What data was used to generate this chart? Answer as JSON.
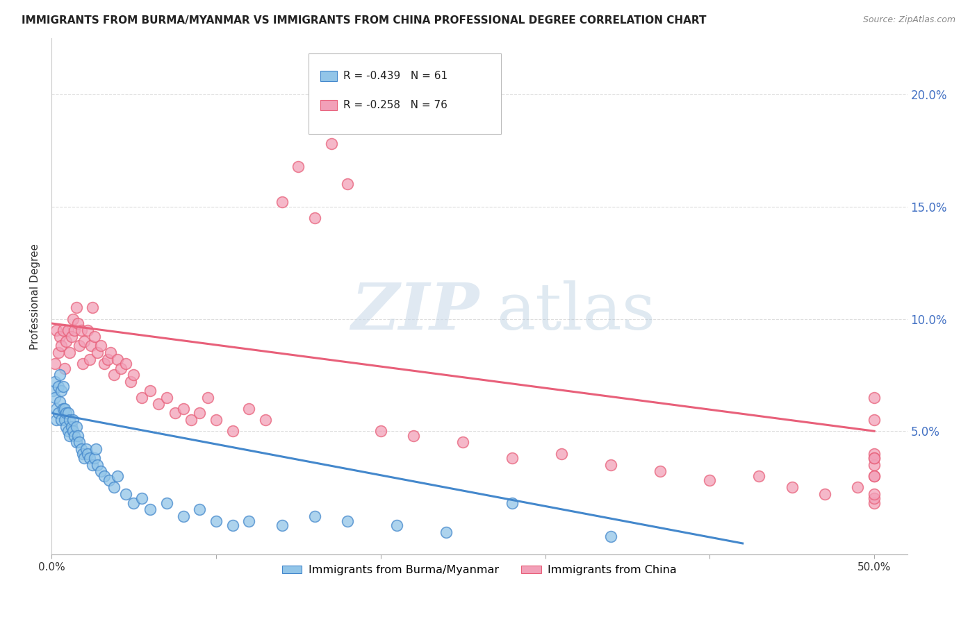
{
  "title": "IMMIGRANTS FROM BURMA/MYANMAR VS IMMIGRANTS FROM CHINA PROFESSIONAL DEGREE CORRELATION CHART",
  "source": "Source: ZipAtlas.com",
  "ylabel": "Professional Degree",
  "xlim": [
    0.0,
    0.52
  ],
  "ylim": [
    -0.005,
    0.225
  ],
  "yticks": [
    0.05,
    0.1,
    0.15,
    0.2
  ],
  "ytick_labels": [
    "5.0%",
    "10.0%",
    "15.0%",
    "20.0%"
  ],
  "xticks": [
    0.0,
    0.1,
    0.2,
    0.3,
    0.4,
    0.5
  ],
  "xtick_labels": [
    "0.0%",
    "",
    "",
    "",
    "",
    "50.0%"
  ],
  "legend_r_blue": "-0.439",
  "legend_n_blue": "61",
  "legend_r_pink": "-0.258",
  "legend_n_pink": "76",
  "blue_color": "#92C5E8",
  "pink_color": "#F2A0B8",
  "blue_line_color": "#4488CC",
  "pink_line_color": "#E8607A",
  "blue_x": [
    0.001,
    0.002,
    0.002,
    0.003,
    0.003,
    0.004,
    0.004,
    0.005,
    0.005,
    0.006,
    0.006,
    0.007,
    0.007,
    0.008,
    0.008,
    0.009,
    0.009,
    0.01,
    0.01,
    0.011,
    0.011,
    0.012,
    0.013,
    0.013,
    0.014,
    0.015,
    0.015,
    0.016,
    0.017,
    0.018,
    0.019,
    0.02,
    0.021,
    0.022,
    0.023,
    0.025,
    0.026,
    0.027,
    0.028,
    0.03,
    0.032,
    0.035,
    0.038,
    0.04,
    0.045,
    0.05,
    0.055,
    0.06,
    0.07,
    0.08,
    0.09,
    0.1,
    0.11,
    0.12,
    0.14,
    0.16,
    0.18,
    0.21,
    0.24,
    0.28,
    0.34
  ],
  "blue_y": [
    0.068,
    0.072,
    0.065,
    0.06,
    0.055,
    0.07,
    0.058,
    0.075,
    0.063,
    0.068,
    0.055,
    0.06,
    0.07,
    0.055,
    0.06,
    0.058,
    0.052,
    0.05,
    0.058,
    0.055,
    0.048,
    0.052,
    0.05,
    0.055,
    0.048,
    0.045,
    0.052,
    0.048,
    0.045,
    0.042,
    0.04,
    0.038,
    0.042,
    0.04,
    0.038,
    0.035,
    0.038,
    0.042,
    0.035,
    0.032,
    0.03,
    0.028,
    0.025,
    0.03,
    0.022,
    0.018,
    0.02,
    0.015,
    0.018,
    0.012,
    0.015,
    0.01,
    0.008,
    0.01,
    0.008,
    0.012,
    0.01,
    0.008,
    0.005,
    0.018,
    0.003
  ],
  "pink_x": [
    0.002,
    0.003,
    0.004,
    0.005,
    0.006,
    0.007,
    0.008,
    0.009,
    0.01,
    0.011,
    0.012,
    0.013,
    0.014,
    0.015,
    0.016,
    0.017,
    0.018,
    0.019,
    0.02,
    0.022,
    0.023,
    0.024,
    0.025,
    0.026,
    0.028,
    0.03,
    0.032,
    0.034,
    0.036,
    0.038,
    0.04,
    0.042,
    0.045,
    0.048,
    0.05,
    0.055,
    0.06,
    0.065,
    0.07,
    0.075,
    0.08,
    0.085,
    0.09,
    0.095,
    0.1,
    0.11,
    0.12,
    0.13,
    0.14,
    0.15,
    0.16,
    0.17,
    0.18,
    0.2,
    0.22,
    0.25,
    0.28,
    0.31,
    0.34,
    0.37,
    0.4,
    0.43,
    0.45,
    0.47,
    0.49,
    0.5,
    0.5,
    0.5,
    0.5,
    0.5,
    0.5,
    0.5,
    0.5,
    0.5,
    0.5,
    0.5
  ],
  "pink_y": [
    0.08,
    0.095,
    0.085,
    0.092,
    0.088,
    0.095,
    0.078,
    0.09,
    0.095,
    0.085,
    0.092,
    0.1,
    0.095,
    0.105,
    0.098,
    0.088,
    0.095,
    0.08,
    0.09,
    0.095,
    0.082,
    0.088,
    0.105,
    0.092,
    0.085,
    0.088,
    0.08,
    0.082,
    0.085,
    0.075,
    0.082,
    0.078,
    0.08,
    0.072,
    0.075,
    0.065,
    0.068,
    0.062,
    0.065,
    0.058,
    0.06,
    0.055,
    0.058,
    0.065,
    0.055,
    0.05,
    0.06,
    0.055,
    0.152,
    0.168,
    0.145,
    0.178,
    0.16,
    0.05,
    0.048,
    0.045,
    0.038,
    0.04,
    0.035,
    0.032,
    0.028,
    0.03,
    0.025,
    0.022,
    0.025,
    0.018,
    0.03,
    0.04,
    0.055,
    0.065,
    0.035,
    0.038,
    0.02,
    0.03,
    0.022,
    0.038
  ],
  "blue_trend_x": [
    0.0,
    0.42
  ],
  "blue_trend_y": [
    0.058,
    0.0
  ],
  "pink_trend_x": [
    0.0,
    0.5
  ],
  "pink_trend_y": [
    0.098,
    0.05
  ]
}
